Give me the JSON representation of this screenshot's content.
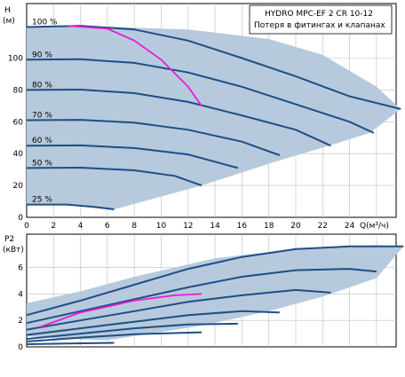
{
  "colors": {
    "region_fill": "#b7c9dc",
    "curve": "#1d4f85",
    "highlight": "#e81cd4",
    "grid": "#bdbdbd",
    "frame": "#000000"
  },
  "title": {
    "line1": "HYDRO MPC-EF 2 CR 10-12",
    "line2": "Потеря в фитингах и клапанах"
  },
  "chart_data": [
    {
      "type": "line",
      "ylabel_unit": "(м)",
      "ylabel": "H",
      "xlabel": "Q(м³/ч)",
      "xlim": [
        0,
        28
      ],
      "ylim": [
        0,
        120
      ],
      "x_ticks": [
        "0",
        "2",
        "4",
        "6",
        "8",
        "10",
        "12",
        "14",
        "16",
        "18",
        "20",
        "22",
        "24"
      ],
      "y_ticks": [
        "0",
        "20",
        "40",
        "60",
        "80",
        "100"
      ],
      "grid": true,
      "operating_region": [
        [
          0,
          8
        ],
        [
          3,
          8
        ],
        [
          6.5,
          5
        ],
        [
          13,
          20
        ],
        [
          18.5,
          35
        ],
        [
          22.5,
          45
        ],
        [
          25.5,
          53
        ],
        [
          27.8,
          68
        ],
        [
          26,
          82
        ],
        [
          22,
          102
        ],
        [
          18,
          112
        ],
        [
          12,
          118
        ],
        [
          5,
          120
        ],
        [
          0,
          120
        ]
      ],
      "series": [
        {
          "label": "100 %",
          "points": [
            [
              0,
              119.5
            ],
            [
              4,
              120.3
            ],
            [
              8,
              118
            ],
            [
              12,
              111
            ],
            [
              16,
              100
            ],
            [
              20,
              88.5
            ],
            [
              24,
              76
            ],
            [
              27.8,
              68
            ]
          ]
        },
        {
          "label": "90 %",
          "points": [
            [
              0,
              99
            ],
            [
              4,
              99.3
            ],
            [
              8,
              97
            ],
            [
              12,
              91
            ],
            [
              16,
              82
            ],
            [
              20,
              71
            ],
            [
              24,
              60
            ],
            [
              25.8,
              53
            ]
          ]
        },
        {
          "label": "80 %",
          "points": [
            [
              0,
              80
            ],
            [
              4,
              80.2
            ],
            [
              8,
              78
            ],
            [
              12,
              72.5
            ],
            [
              16,
              64
            ],
            [
              20,
              55
            ],
            [
              22.6,
              45
            ]
          ]
        },
        {
          "label": "70 %",
          "points": [
            [
              0,
              61
            ],
            [
              4,
              61.2
            ],
            [
              8,
              59.5
            ],
            [
              12,
              55
            ],
            [
              16,
              47.5
            ],
            [
              18.8,
              39
            ]
          ]
        },
        {
          "label": "60 %",
          "points": [
            [
              0,
              45
            ],
            [
              4,
              45.2
            ],
            [
              8,
              43.5
            ],
            [
              12,
              39.5
            ],
            [
              15.7,
              31
            ]
          ]
        },
        {
          "label": "50 %",
          "points": [
            [
              0,
              31
            ],
            [
              4,
              31.2
            ],
            [
              8,
              29.5
            ],
            [
              11,
              26
            ],
            [
              13,
              20
            ]
          ]
        },
        {
          "label": "25 %",
          "points": [
            [
              0,
              8
            ],
            [
              3,
              8
            ],
            [
              5,
              6.5
            ],
            [
              6.5,
              5
            ]
          ]
        }
      ],
      "highlight": {
        "points": [
          [
            3,
            120.3
          ],
          [
            6,
            118.5
          ],
          [
            8,
            111
          ],
          [
            10,
            99
          ],
          [
            12,
            82
          ],
          [
            13,
            70
          ]
        ]
      }
    },
    {
      "type": "line",
      "ylabel": "P2",
      "ylabel_unit": "(кВт)",
      "xlim": [
        0,
        28
      ],
      "ylim": [
        0,
        8.5
      ],
      "y_ticks": [
        "0",
        "2",
        "4",
        "6"
      ],
      "grid": true,
      "operating_region": [
        [
          0,
          0.8
        ],
        [
          3,
          0.6
        ],
        [
          6,
          0.5
        ],
        [
          13,
          1.6
        ],
        [
          18,
          2.7
        ],
        [
          22,
          3.8
        ],
        [
          26,
          5.2
        ],
        [
          28,
          7.6
        ],
        [
          26,
          7.7
        ],
        [
          20,
          7.4
        ],
        [
          14,
          6.7
        ],
        [
          8,
          5.3
        ],
        [
          4,
          4.2
        ],
        [
          0,
          3.3
        ]
      ],
      "series": [
        {
          "label": "100 %",
          "points": [
            [
              0,
              2.4
            ],
            [
              4,
              3.5
            ],
            [
              8,
              4.7
            ],
            [
              12,
              5.9
            ],
            [
              16,
              6.8
            ],
            [
              20,
              7.4
            ],
            [
              24,
              7.6
            ],
            [
              28,
              7.6
            ]
          ]
        },
        {
          "label": "90 %",
          "points": [
            [
              0,
              1.8
            ],
            [
              4,
              2.7
            ],
            [
              8,
              3.6
            ],
            [
              12,
              4.5
            ],
            [
              16,
              5.3
            ],
            [
              20,
              5.8
            ],
            [
              24,
              5.9
            ],
            [
              26,
              5.7
            ]
          ]
        },
        {
          "label": "80 %",
          "points": [
            [
              0,
              1.3
            ],
            [
              4,
              2.0
            ],
            [
              8,
              2.7
            ],
            [
              12,
              3.4
            ],
            [
              16,
              3.9
            ],
            [
              20,
              4.3
            ],
            [
              22.6,
              4.1
            ]
          ]
        },
        {
          "label": "70 %",
          "points": [
            [
              0,
              0.9
            ],
            [
              4,
              1.4
            ],
            [
              8,
              1.9
            ],
            [
              12,
              2.4
            ],
            [
              16,
              2.7
            ],
            [
              18.8,
              2.6
            ]
          ]
        },
        {
          "label": "60 %",
          "points": [
            [
              0,
              0.6
            ],
            [
              4,
              1.0
            ],
            [
              8,
              1.4
            ],
            [
              12,
              1.7
            ],
            [
              15.7,
              1.75
            ]
          ]
        },
        {
          "label": "50 %",
          "points": [
            [
              0,
              0.4
            ],
            [
              4,
              0.7
            ],
            [
              8,
              0.95
            ],
            [
              13,
              1.1
            ]
          ]
        },
        {
          "label": "25 %",
          "points": [
            [
              0,
              0.2
            ],
            [
              3,
              0.25
            ],
            [
              6.5,
              0.3
            ]
          ]
        }
      ],
      "highlight": {
        "points": [
          [
            1,
            1.5
          ],
          [
            4,
            2.6
          ],
          [
            8,
            3.5
          ],
          [
            11,
            3.9
          ],
          [
            13,
            4.0
          ]
        ]
      }
    }
  ]
}
